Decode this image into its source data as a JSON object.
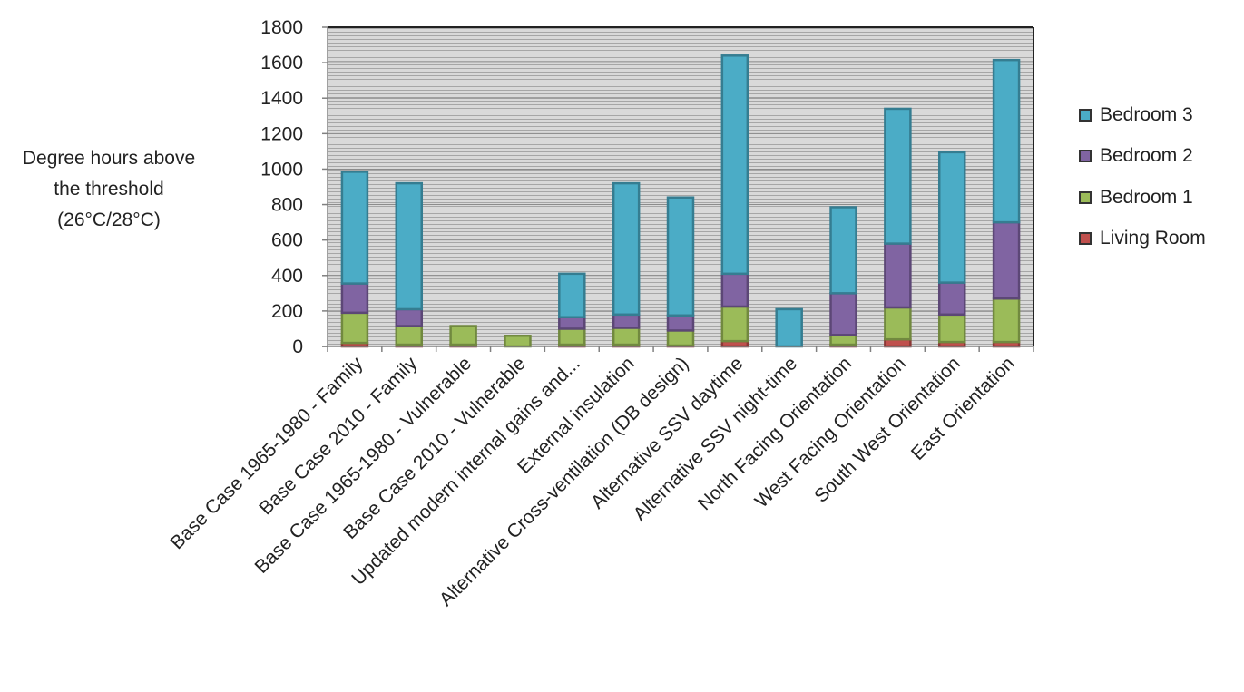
{
  "chart_data": {
    "type": "bar",
    "stacked": true,
    "ylabel": [
      "Degree hours above",
      "the threshold",
      "(26°C/28°C)"
    ],
    "ylim": [
      0,
      1800
    ],
    "yticks": [
      "0",
      "200",
      "400",
      "600",
      "800",
      "1000",
      "1200",
      "1400",
      "1600",
      "1800"
    ],
    "grid": true,
    "legend_position": "right",
    "categories": [
      "Base Case 1965-1980 - Family",
      "Base Case 2010 - Family",
      "Base Case 1965-1980 - Vulnerable",
      "Base Case  2010 - Vulnerable",
      "Updated modern internal gains and...",
      "External insulation",
      "Alternative Cross-ventilation (DB design)",
      "Alternative SSV daytime",
      "Alternative SSV  night-time",
      "North Facing Orientation",
      "West Facing Orientation",
      "South West Orientation",
      "East Orientation"
    ],
    "series": [
      {
        "name": "Living Room",
        "color": "#c0504d",
        "border": "#8c3836",
        "values": [
          20,
          10,
          10,
          0,
          10,
          10,
          5,
          30,
          0,
          10,
          40,
          25,
          25
        ]
      },
      {
        "name": "Bedroom 1",
        "color": "#9bbb59",
        "border": "#71893f",
        "values": [
          170,
          105,
          105,
          60,
          90,
          95,
          85,
          195,
          0,
          55,
          180,
          155,
          245
        ]
      },
      {
        "name": "Bedroom 2",
        "color": "#8064a2",
        "border": "#5c4776",
        "values": [
          165,
          95,
          0,
          0,
          65,
          75,
          85,
          185,
          0,
          235,
          360,
          180,
          430
        ]
      },
      {
        "name": "Bedroom 3",
        "color": "#4bacc6",
        "border": "#357d91",
        "values": [
          630,
          710,
          0,
          0,
          245,
          740,
          665,
          1230,
          210,
          485,
          760,
          735,
          915
        ]
      }
    ]
  }
}
